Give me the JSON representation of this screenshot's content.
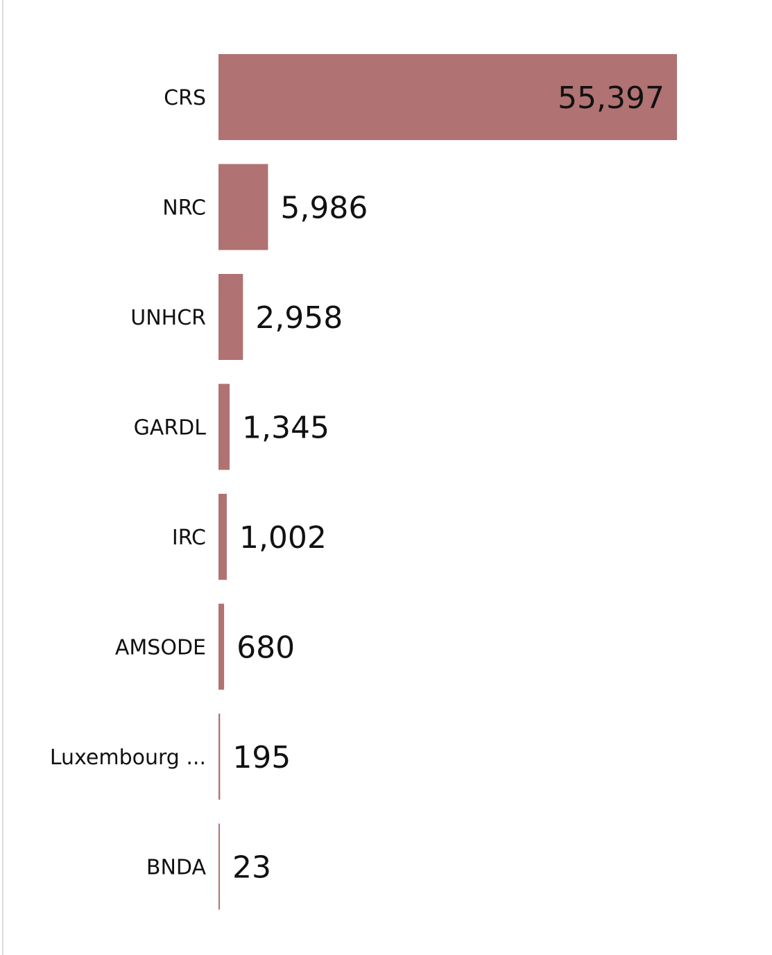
{
  "chart_data": {
    "type": "bar",
    "orientation": "horizontal",
    "categories": [
      "CRS",
      "NRC",
      "UNHCR",
      "GARDL",
      "IRC",
      "AMSODE",
      "Luxembourg ...",
      "BNDA"
    ],
    "values": [
      55397,
      5986,
      2958,
      1345,
      1002,
      680,
      195,
      23
    ],
    "value_labels": [
      "55,397",
      "5,986",
      "2,958",
      "1,345",
      "1,002",
      "680",
      "195",
      "23"
    ],
    "title": "",
    "xlabel": "",
    "ylabel": "",
    "xlim": [
      0,
      55397
    ],
    "grid": false,
    "legend": "none",
    "colors": {
      "bar": "#b07272",
      "text": "#111111",
      "border": "#dddddd"
    }
  }
}
